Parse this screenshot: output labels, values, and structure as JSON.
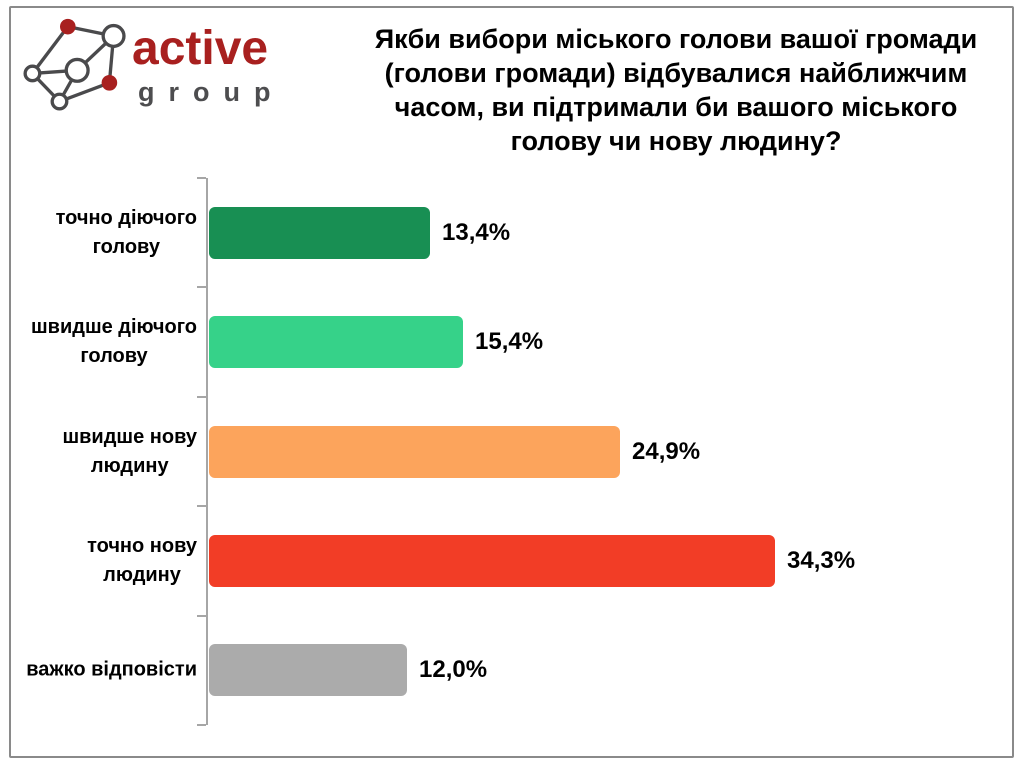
{
  "brand": {
    "name": "active",
    "subname": "group",
    "name_color": "#a8201f",
    "subname_color": "#4d4d4f"
  },
  "title_lines": [
    "Якби вибори міського голови вашої громади",
    "(голови громади) відбувалися найближчим",
    "часом, ви підтримали би вашого міського",
    "голову чи нову людину?"
  ],
  "chart_data": {
    "type": "bar",
    "orientation": "horizontal",
    "title": "Якби вибори міського голови вашої громади (голови громади) відбувалися найближчим часом, ви підтримали би вашого міського голову чи нову людину?",
    "categories": [
      "точно діючого голову",
      "швидше діючого голову",
      "швидше нову людину",
      "точно нову людину",
      "важко відповісти"
    ],
    "category_lines": [
      [
        "точно діючого",
        "голову"
      ],
      [
        "швидше діючого",
        "голову"
      ],
      [
        "швидше нову",
        "людину"
      ],
      [
        "точно нову",
        "людину"
      ],
      [
        "важко відповісти"
      ]
    ],
    "values": [
      13.4,
      15.4,
      24.9,
      34.3,
      12.0
    ],
    "value_labels": [
      "13,4%",
      "15,4%",
      "24,9%",
      "34,3%",
      "12,0%"
    ],
    "bar_colors": [
      "#188f53",
      "#36d289",
      "#fca45c",
      "#f23d26",
      "#ababab"
    ],
    "xlim": [
      0,
      40
    ],
    "grid": false,
    "legend": "none",
    "data_label_position": "outside-end",
    "axis_color": "#a6a6a6",
    "label_color": "#000000"
  }
}
